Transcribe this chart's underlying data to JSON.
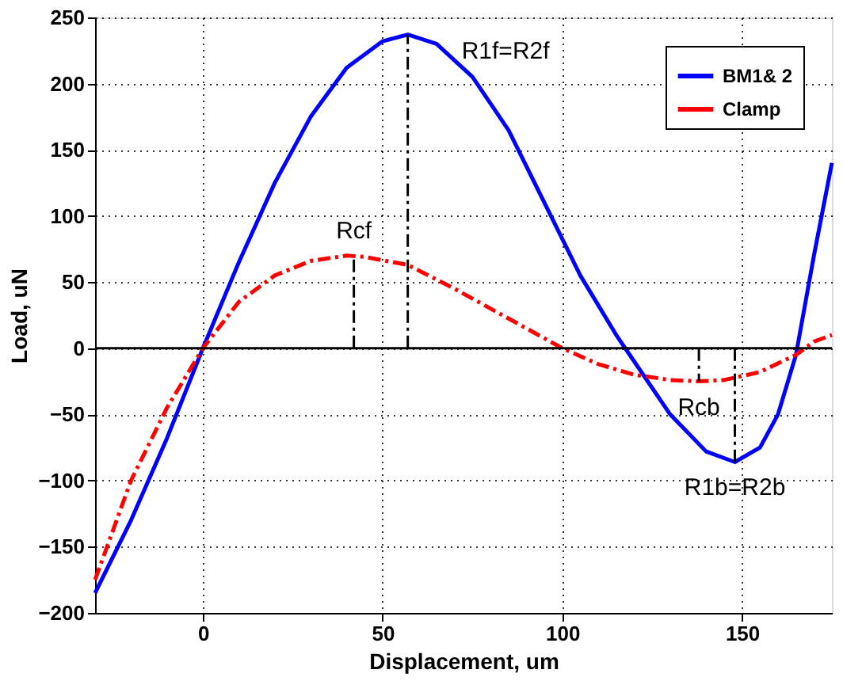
{
  "chart_data": {
    "type": "line",
    "xlabel": "Displacement, um",
    "ylabel": "Load, uN",
    "xlim": [
      -30,
      175
    ],
    "xticks": [
      0,
      50,
      100,
      150
    ],
    "ylim": [
      -200,
      250
    ],
    "yticks": [
      -200,
      -150,
      -100,
      -50,
      0,
      50,
      100,
      150,
      200,
      250
    ],
    "grid": true,
    "legend": "top right",
    "series": [
      {
        "name": "BM1& 2",
        "color": "#0000ff",
        "line_style": "solid",
        "x": [
          -30,
          -20,
          -10,
          0,
          10,
          20,
          30,
          40,
          50,
          57,
          65,
          75,
          85,
          95,
          105,
          115,
          120,
          130,
          140,
          148,
          155,
          160,
          165,
          170,
          175
        ],
        "values": [
          -185,
          -130,
          -68,
          0,
          65,
          125,
          175,
          212,
          232,
          237,
          230,
          205,
          165,
          110,
          55,
          10,
          -10,
          -50,
          -78,
          -86,
          -75,
          -50,
          -5,
          70,
          140
        ]
      },
      {
        "name": "Clamp",
        "color": "#ff0000",
        "line_style": "dashed",
        "x": [
          -30,
          -20,
          -10,
          0,
          10,
          20,
          30,
          40,
          45,
          57,
          70,
          80,
          90,
          100,
          110,
          120,
          130,
          138,
          145,
          155,
          165,
          170,
          175
        ],
        "values": [
          -175,
          -100,
          -45,
          0,
          35,
          55,
          66,
          70,
          69,
          63,
          45,
          30,
          15,
          0,
          -12,
          -20,
          -24,
          -25,
          -24,
          -18,
          -5,
          5,
          10
        ]
      },
      {
        "color": "#000000",
        "line_style": "dashed",
        "x": [
          57,
          57
        ],
        "values": [
          0,
          237
        ]
      },
      {
        "color": "#000000",
        "line_style": "dashed",
        "x": [
          42,
          42
        ],
        "values": [
          0,
          70
        ]
      },
      {
        "color": "#000000",
        "line_style": "dashed",
        "x": [
          138,
          138
        ],
        "values": [
          0,
          -25
        ]
      },
      {
        "color": "#000000",
        "line_style": "dashed",
        "x": [
          148,
          148
        ],
        "values": [
          0,
          -86
        ]
      }
    ],
    "ref_lines": [
      {
        "axis": "y",
        "value": 0,
        "color": "#000000",
        "line_style": "solid"
      }
    ],
    "annotations": [
      {
        "text": "R1f=R2f",
        "x": 57,
        "y": 237
      },
      {
        "text": "Rcf",
        "x": 42,
        "y": 70
      },
      {
        "text": "Rcb",
        "x": 138,
        "y": -25
      },
      {
        "text": "R1b=R2b",
        "x": 148,
        "y": -86
      }
    ]
  }
}
